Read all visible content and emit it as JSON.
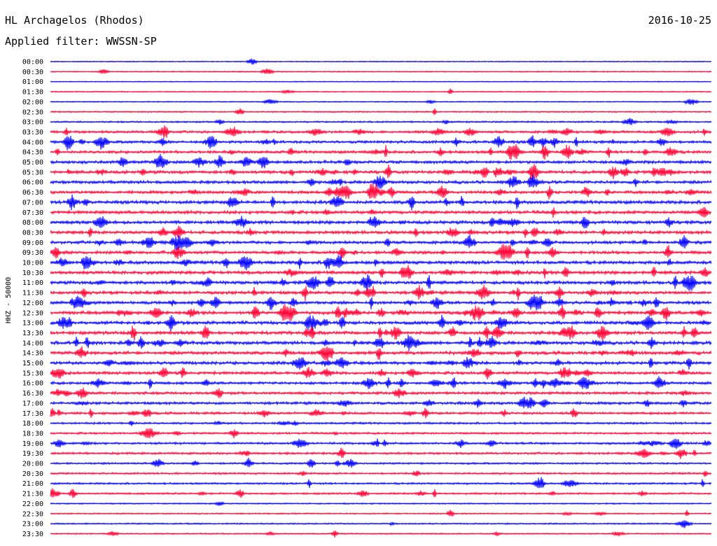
{
  "header": {
    "station": "HL Archagelos (Rhodos)",
    "date": "2016-10-25",
    "filter": "Applied filter: WWSSN-SP"
  },
  "chart_data": {
    "type": "line",
    "title": "HL Archagelos (Rhodos)",
    "ylabel": "HHZ - 50000",
    "colors": [
      "#0000ff",
      "#ff0033"
    ],
    "row_labels": [
      "00:00",
      "00:30",
      "01:00",
      "01:30",
      "02:00",
      "02:30",
      "03:00",
      "03:30",
      "04:00",
      "04:30",
      "05:00",
      "05:30",
      "06:00",
      "06:30",
      "07:00",
      "07:30",
      "08:00",
      "08:30",
      "09:00",
      "09:30",
      "10:00",
      "10:30",
      "11:00",
      "11:30",
      "12:00",
      "12:30",
      "13:00",
      "13:30",
      "14:00",
      "14:30",
      "15:00",
      "15:30",
      "16:00",
      "16:30",
      "17:00",
      "17:30",
      "18:00",
      "18:30",
      "19:00",
      "19:30",
      "20:00",
      "20:30",
      "21:00",
      "21:30",
      "22:00",
      "22:30",
      "23:00",
      "23:30"
    ],
    "activity": [
      0.05,
      0.12,
      0.05,
      0.1,
      0.12,
      0.2,
      0.3,
      0.6,
      0.7,
      0.7,
      0.8,
      0.85,
      0.8,
      0.8,
      0.9,
      0.85,
      0.9,
      0.85,
      0.8,
      0.8,
      0.9,
      0.9,
      0.9,
      0.85,
      0.8,
      0.9,
      0.9,
      0.9,
      0.9,
      0.9,
      0.85,
      0.75,
      0.7,
      0.7,
      0.7,
      0.6,
      0.45,
      0.45,
      0.5,
      0.5,
      0.4,
      0.4,
      0.4,
      0.4,
      0.2,
      0.2,
      0.25,
      0.2
    ],
    "grid": false
  }
}
